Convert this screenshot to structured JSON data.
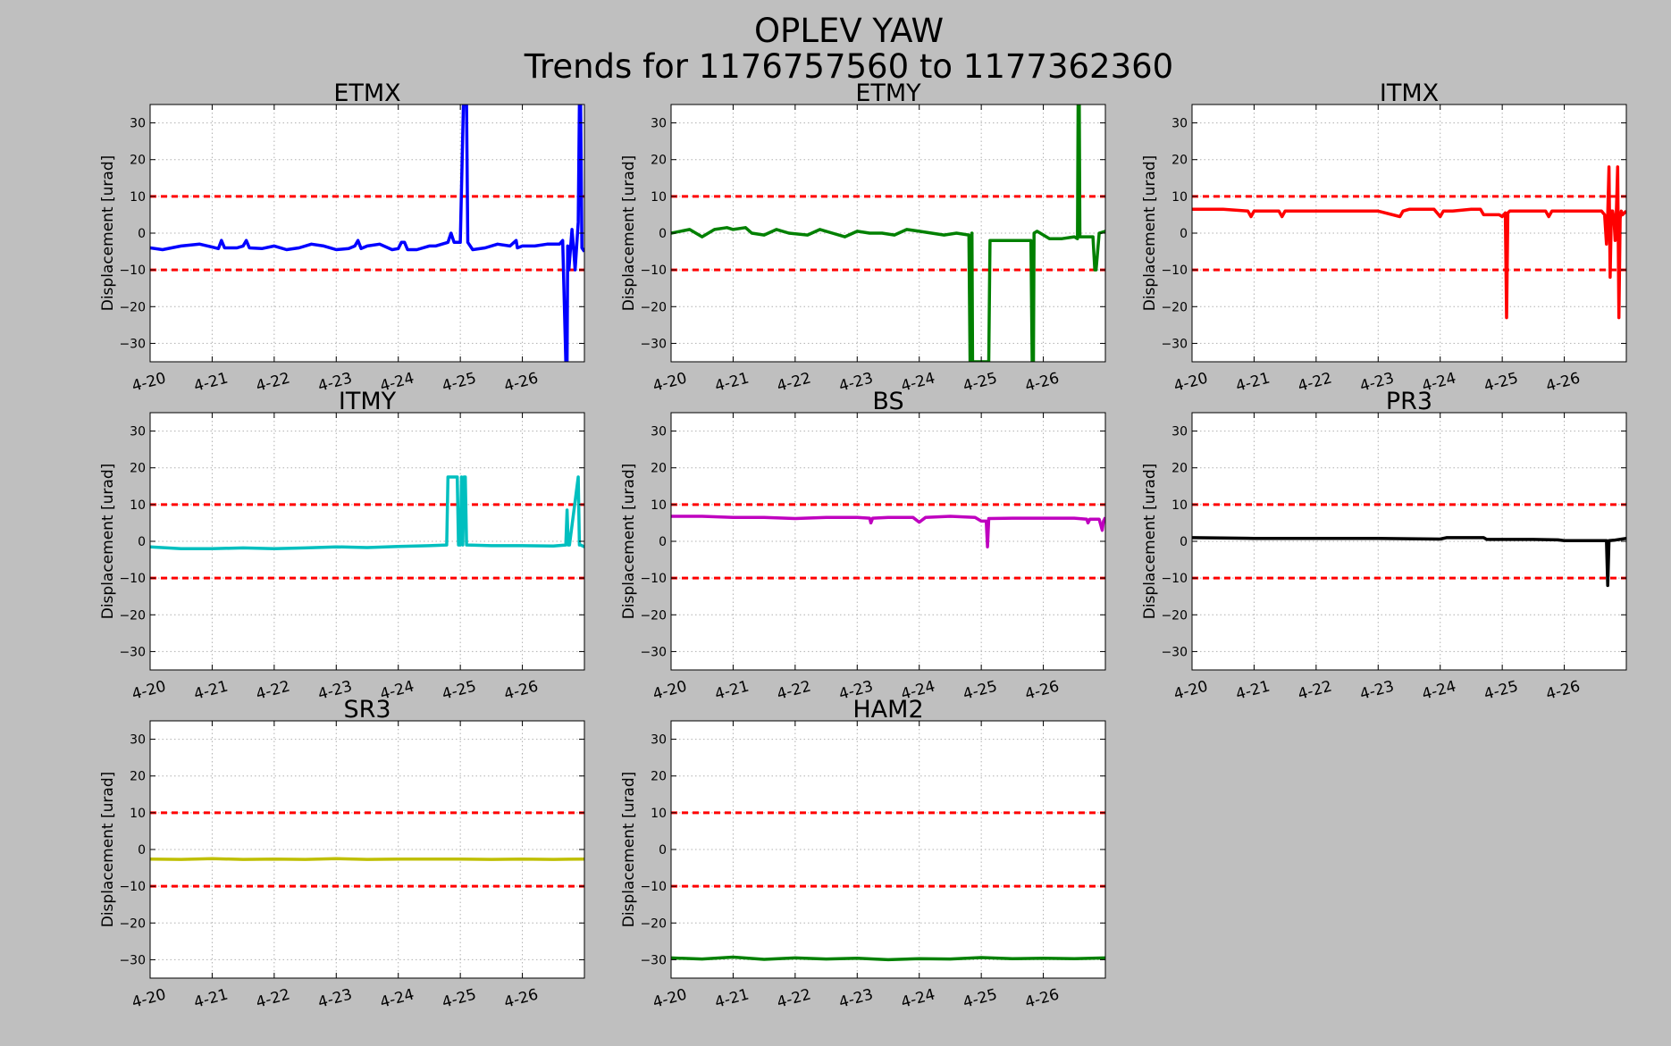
{
  "figure": {
    "title_line1": "OPLEV YAW",
    "title_line2": "Trends for 1176757560 to 1177362360",
    "background": "#bfbfbf"
  },
  "chart_data": [
    {
      "type": "line",
      "title": "ETMX",
      "ylabel": "Displacement [urad]",
      "color": "#0000ff",
      "xlim": [
        0,
        7
      ],
      "ylim": [
        -35,
        35
      ],
      "xticks": [
        0,
        1,
        2,
        3,
        4,
        5,
        6
      ],
      "xtick_labels": [
        "4-20",
        "4-21",
        "4-22",
        "4-23",
        "4-24",
        "4-25",
        "4-26"
      ],
      "yticks": [
        -30,
        -20,
        -10,
        0,
        10,
        20,
        30
      ],
      "ytick_labels": [
        "−30",
        "−20",
        "−10",
        "0",
        "10",
        "20",
        "30"
      ],
      "grid": true,
      "thresholds": [
        10,
        -10
      ],
      "threshold_color": "#ff0000",
      "series": [
        {
          "x": [
            0,
            0.2,
            0.5,
            0.8,
            1.0,
            1.1,
            1.15,
            1.2,
            1.4,
            1.5,
            1.55,
            1.6,
            1.8,
            2.0,
            2.2,
            2.4,
            2.6,
            2.8,
            3.0,
            3.2,
            3.3,
            3.35,
            3.4,
            3.5,
            3.7,
            3.9,
            4.0,
            4.05,
            4.1,
            4.15,
            4.3,
            4.5,
            4.6,
            4.8,
            4.85,
            4.9,
            5.0,
            5.05,
            5.08,
            5.1,
            5.12,
            5.2,
            5.4,
            5.6,
            5.8,
            5.9,
            5.92,
            6.0,
            6.2,
            6.4,
            6.6,
            6.65,
            6.7,
            6.72,
            6.73,
            6.75,
            6.8,
            6.83,
            6.85,
            6.9,
            6.92,
            6.94,
            6.96,
            7.0
          ],
          "y": [
            -4,
            -4.5,
            -3.5,
            -3,
            -3.8,
            -4.2,
            -2,
            -4,
            -4,
            -3.5,
            -2,
            -4,
            -4.2,
            -3.5,
            -4.5,
            -4,
            -3,
            -3.5,
            -4.5,
            -4.2,
            -3.5,
            -2,
            -4.2,
            -3.5,
            -3,
            -4.5,
            -4.2,
            -2.5,
            -2.5,
            -4.5,
            -4.5,
            -3.5,
            -3.5,
            -2.5,
            0,
            -2.5,
            -2.5,
            35,
            35,
            35,
            -2.5,
            -4.5,
            -4,
            -3,
            -3.5,
            -2,
            -4,
            -3.5,
            -3.5,
            -3,
            -3,
            -2,
            -35,
            -35,
            -3.5,
            -10,
            1,
            -5,
            -10,
            3,
            35,
            35,
            -4,
            -5
          ]
        }
      ]
    },
    {
      "type": "line",
      "title": "ETMY",
      "ylabel": "Displacement [urad]",
      "color": "#008000",
      "xlim": [
        0,
        7
      ],
      "ylim": [
        -35,
        35
      ],
      "xticks": [
        0,
        1,
        2,
        3,
        4,
        5,
        6
      ],
      "xtick_labels": [
        "4-20",
        "4-21",
        "4-22",
        "4-23",
        "4-24",
        "4-25",
        "4-26"
      ],
      "yticks": [
        -30,
        -20,
        -10,
        0,
        10,
        20,
        30
      ],
      "ytick_labels": [
        "−30",
        "−20",
        "−10",
        "0",
        "10",
        "20",
        "30"
      ],
      "grid": true,
      "thresholds": [
        10,
        -10
      ],
      "threshold_color": "#ff0000",
      "series": [
        {
          "x": [
            0,
            0.3,
            0.5,
            0.7,
            0.9,
            1.0,
            1.2,
            1.3,
            1.5,
            1.7,
            1.9,
            2.2,
            2.4,
            2.6,
            2.8,
            3.0,
            3.2,
            3.4,
            3.6,
            3.8,
            4.0,
            4.2,
            4.4,
            4.6,
            4.8,
            4.82,
            4.84,
            4.85,
            4.86,
            5.0,
            5.12,
            5.14,
            5.16,
            5.5,
            5.8,
            5.82,
            5.84,
            5.85,
            5.9,
            6.1,
            6.3,
            6.5,
            6.55,
            6.56,
            6.58,
            6.59,
            6.7,
            6.8,
            6.83,
            6.85,
            6.9,
            7.0
          ],
          "y": [
            0,
            1,
            -1,
            1,
            1.5,
            1,
            1.5,
            0,
            -0.5,
            1,
            0,
            -0.5,
            1,
            0,
            -1,
            0.5,
            0,
            0,
            -0.5,
            1,
            0.5,
            0,
            -0.5,
            0,
            -0.5,
            -35,
            -35,
            0,
            -35,
            -35,
            -35,
            -2,
            -2,
            -2,
            -2,
            -35,
            -35,
            0,
            0.5,
            -1.5,
            -1.5,
            -1,
            -1.5,
            35,
            35,
            -1,
            -1,
            -1,
            -10,
            -10,
            0,
            0.5
          ]
        }
      ]
    },
    {
      "type": "line",
      "title": "ITMX",
      "ylabel": "Displacement [urad]",
      "color": "#ff0000",
      "xlim": [
        0,
        7
      ],
      "ylim": [
        -35,
        35
      ],
      "xticks": [
        0,
        1,
        2,
        3,
        4,
        5,
        6
      ],
      "xtick_labels": [
        "4-20",
        "4-21",
        "4-22",
        "4-23",
        "4-24",
        "4-25",
        "4-26"
      ],
      "yticks": [
        -30,
        -20,
        -10,
        0,
        10,
        20,
        30
      ],
      "ytick_labels": [
        "−30",
        "−20",
        "−10",
        "0",
        "10",
        "20",
        "30"
      ],
      "grid": true,
      "thresholds": [
        10,
        -10
      ],
      "threshold_color": "#ff0000",
      "series": [
        {
          "x": [
            0,
            0.5,
            0.9,
            0.95,
            1.0,
            1.4,
            1.45,
            1.5,
            2.0,
            2.5,
            3.0,
            3.35,
            3.4,
            3.5,
            3.9,
            4.0,
            4.05,
            4.2,
            4.5,
            4.6,
            4.65,
            4.7,
            4.95,
            5.0,
            5.05,
            5.07,
            5.09,
            5.12,
            5.2,
            5.5,
            5.7,
            5.75,
            5.8,
            6.2,
            6.6,
            6.65,
            6.68,
            6.7,
            6.72,
            6.74,
            6.76,
            6.78,
            6.8,
            6.82,
            6.84,
            6.86,
            6.88,
            6.9,
            6.92,
            6.94,
            7.0
          ],
          "y": [
            6.5,
            6.5,
            6,
            4.5,
            6,
            6,
            4.5,
            6,
            6,
            6,
            6,
            4.5,
            6,
            6.5,
            6.5,
            4.5,
            6,
            6,
            6.5,
            6.5,
            6.5,
            5,
            5,
            4.5,
            5.5,
            -23,
            5.5,
            6,
            6,
            6,
            6,
            4.5,
            6,
            6,
            6,
            5,
            -3,
            5,
            18,
            -12,
            6,
            6,
            4,
            -2,
            6,
            18,
            -23,
            4,
            6,
            5,
            6
          ]
        }
      ]
    },
    {
      "type": "line",
      "title": "ITMY",
      "ylabel": "Displacement [urad]",
      "color": "#00bfbf",
      "xlim": [
        0,
        7
      ],
      "ylim": [
        -35,
        35
      ],
      "xticks": [
        0,
        1,
        2,
        3,
        4,
        5,
        6
      ],
      "xtick_labels": [
        "4-20",
        "4-21",
        "4-22",
        "4-23",
        "4-24",
        "4-25",
        "4-26"
      ],
      "yticks": [
        -30,
        -20,
        -10,
        0,
        10,
        20,
        30
      ],
      "ytick_labels": [
        "−30",
        "−20",
        "−10",
        "0",
        "10",
        "20",
        "30"
      ],
      "grid": true,
      "thresholds": [
        10,
        -10
      ],
      "threshold_color": "#ff0000",
      "series": [
        {
          "x": [
            0,
            0.5,
            1.0,
            1.5,
            2.0,
            2.5,
            3.0,
            3.5,
            4.0,
            4.5,
            4.78,
            4.8,
            4.95,
            4.97,
            5.0,
            5.02,
            5.04,
            5.06,
            5.08,
            5.1,
            5.12,
            5.5,
            6.0,
            6.5,
            6.7,
            6.72,
            6.74,
            6.76,
            6.9,
            6.92,
            6.94,
            7.0
          ],
          "y": [
            -1.5,
            -2,
            -2,
            -1.8,
            -2,
            -1.8,
            -1.5,
            -1.7,
            -1.4,
            -1.2,
            -1,
            17.5,
            17.5,
            -1,
            -1,
            17.5,
            -1,
            17.5,
            17.5,
            -1,
            -1,
            -1.2,
            -1.2,
            -1.3,
            -1,
            8.5,
            -1,
            -1,
            17.5,
            -1,
            -1,
            -1.5
          ]
        }
      ]
    },
    {
      "type": "line",
      "title": "BS",
      "ylabel": "Displacement [urad]",
      "color": "#bf00bf",
      "xlim": [
        0,
        7
      ],
      "ylim": [
        -35,
        35
      ],
      "xticks": [
        0,
        1,
        2,
        3,
        4,
        5,
        6
      ],
      "xtick_labels": [
        "4-20",
        "4-21",
        "4-22",
        "4-23",
        "4-24",
        "4-25",
        "4-26"
      ],
      "yticks": [
        -30,
        -20,
        -10,
        0,
        10,
        20,
        30
      ],
      "ytick_labels": [
        "−30",
        "−20",
        "−10",
        "0",
        "10",
        "20",
        "30"
      ],
      "grid": true,
      "thresholds": [
        10,
        -10
      ],
      "threshold_color": "#ff0000",
      "series": [
        {
          "x": [
            0,
            0.5,
            1.0,
            1.5,
            2.0,
            2.5,
            3.0,
            3.2,
            3.22,
            3.25,
            3.5,
            3.9,
            4.0,
            4.1,
            4.5,
            4.9,
            5.0,
            5.08,
            5.1,
            5.12,
            5.5,
            6.0,
            6.5,
            6.7,
            6.72,
            6.75,
            6.9,
            6.95,
            6.97,
            7.0
          ],
          "y": [
            6.8,
            6.8,
            6.5,
            6.5,
            6.2,
            6.5,
            6.5,
            6.3,
            5,
            6.3,
            6.5,
            6.5,
            5.2,
            6.5,
            6.8,
            6.5,
            5.5,
            5.5,
            -1.5,
            6.2,
            6.3,
            6.3,
            6.3,
            6.0,
            5,
            6.0,
            6.0,
            3,
            5.5,
            6.5
          ]
        }
      ]
    },
    {
      "type": "line",
      "title": "PR3",
      "ylabel": "Displacement [urad]",
      "color": "#000000",
      "xlim": [
        0,
        7
      ],
      "ylim": [
        -35,
        35
      ],
      "xticks": [
        0,
        1,
        2,
        3,
        4,
        5,
        6
      ],
      "xtick_labels": [
        "4-20",
        "4-21",
        "4-22",
        "4-23",
        "4-24",
        "4-25",
        "4-26"
      ],
      "yticks": [
        -30,
        -20,
        -10,
        0,
        10,
        20,
        30
      ],
      "ytick_labels": [
        "−30",
        "−20",
        "−10",
        "0",
        "10",
        "20",
        "30"
      ],
      "grid": true,
      "thresholds": [
        10,
        -10
      ],
      "threshold_color": "#ff0000",
      "series": [
        {
          "x": [
            0,
            1.0,
            2.0,
            3.0,
            4.0,
            4.1,
            4.7,
            4.75,
            5.0,
            5.5,
            5.9,
            6.0,
            6.5,
            6.68,
            6.7,
            6.72,
            6.8,
            7.0
          ],
          "y": [
            1,
            0.8,
            0.8,
            0.8,
            0.6,
            1,
            1,
            0.5,
            0.5,
            0.5,
            0.4,
            0.2,
            0.2,
            0.2,
            -12,
            0.2,
            0.3,
            0.8
          ]
        }
      ]
    },
    {
      "type": "line",
      "title": "SR3",
      "ylabel": "Displacement [urad]",
      "color": "#bfbf00",
      "xlim": [
        0,
        7
      ],
      "ylim": [
        -35,
        35
      ],
      "xticks": [
        0,
        1,
        2,
        3,
        4,
        5,
        6
      ],
      "xtick_labels": [
        "4-20",
        "4-21",
        "4-22",
        "4-23",
        "4-24",
        "4-25",
        "4-26"
      ],
      "yticks": [
        -30,
        -20,
        -10,
        0,
        10,
        20,
        30
      ],
      "ytick_labels": [
        "−30",
        "−20",
        "−10",
        "0",
        "10",
        "20",
        "30"
      ],
      "grid": true,
      "thresholds": [
        10,
        -10
      ],
      "threshold_color": "#ff0000",
      "series": [
        {
          "x": [
            0,
            0.5,
            1.0,
            1.5,
            2.0,
            2.5,
            3.0,
            3.5,
            4.0,
            4.5,
            5.0,
            5.5,
            6.0,
            6.5,
            7.0
          ],
          "y": [
            -2.6,
            -2.7,
            -2.5,
            -2.7,
            -2.6,
            -2.7,
            -2.5,
            -2.7,
            -2.6,
            -2.6,
            -2.6,
            -2.7,
            -2.6,
            -2.7,
            -2.6
          ]
        }
      ]
    },
    {
      "type": "line",
      "title": "HAM2",
      "ylabel": "Displacement [urad]",
      "color": "#008000",
      "xlim": [
        0,
        7
      ],
      "ylim": [
        -35,
        35
      ],
      "xticks": [
        0,
        1,
        2,
        3,
        4,
        5,
        6
      ],
      "xtick_labels": [
        "4-20",
        "4-21",
        "4-22",
        "4-23",
        "4-24",
        "4-25",
        "4-26"
      ],
      "yticks": [
        -30,
        -20,
        -10,
        0,
        10,
        20,
        30
      ],
      "ytick_labels": [
        "−30",
        "−20",
        "−10",
        "0",
        "10",
        "20",
        "30"
      ],
      "grid": true,
      "thresholds": [
        10,
        -10
      ],
      "threshold_color": "#ff0000",
      "series": [
        {
          "x": [
            0,
            0.5,
            1.0,
            1.5,
            2.0,
            2.5,
            3.0,
            3.5,
            4.0,
            4.5,
            5.0,
            5.5,
            6.0,
            6.5,
            7.0
          ],
          "y": [
            -29.5,
            -29.8,
            -29.3,
            -29.9,
            -29.5,
            -29.8,
            -29.6,
            -30,
            -29.7,
            -29.8,
            -29.4,
            -29.7,
            -29.6,
            -29.7,
            -29.5
          ]
        }
      ]
    }
  ]
}
